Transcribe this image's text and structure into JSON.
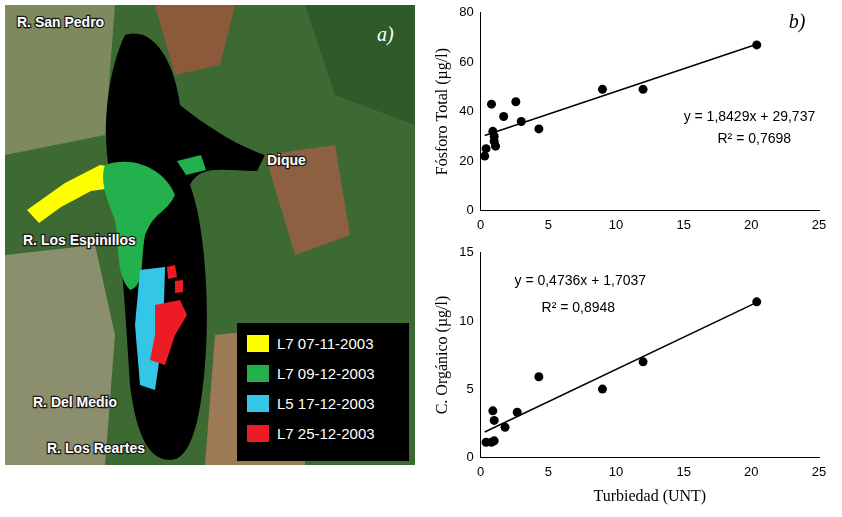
{
  "map": {
    "panel": "a)",
    "labels": [
      {
        "text": "R. San Pedro"
      },
      {
        "text": "R. Los Espinillos"
      },
      {
        "text": "Dique"
      },
      {
        "text": "R. Del Medio"
      },
      {
        "text": "R. Los Reartes"
      }
    ],
    "legend": [
      {
        "label": "L7 07-11-2003",
        "color": "#ffff00"
      },
      {
        "label": "L7 09-12-2003",
        "color": "#22b14c"
      },
      {
        "label": "L5 17-12-2003",
        "color": "#33c6e6"
      },
      {
        "label": "L7 25-12-2003",
        "color": "#ed1c24"
      }
    ]
  },
  "chart_data": [
    {
      "type": "scatter",
      "y_label": "Fósforo Total (µg/l)",
      "annotations": [
        {
          "text": "b)"
        },
        {
          "text": "y = 1,8429x + 29,737"
        },
        {
          "text": "R² = 0,7698"
        }
      ],
      "xlim": [
        0,
        25
      ],
      "xticks": [
        0,
        5,
        10,
        15,
        20,
        25
      ],
      "ylim": [
        0,
        80
      ],
      "yticks": [
        0,
        20,
        40,
        60,
        80
      ],
      "grid": false,
      "series": [
        {
          "type": "scatter",
          "color": "#000000",
          "marker": "circle",
          "x": [
            0.3,
            0.4,
            0.8,
            0.9,
            1.0,
            1.0,
            1.1,
            1.7,
            2.6,
            3.0,
            4.3,
            9.0,
            12.0,
            20.4
          ],
          "values": [
            22,
            25,
            43,
            32,
            30,
            28,
            26,
            38,
            44,
            36,
            33,
            49,
            49,
            67
          ]
        },
        {
          "type": "line",
          "color": "#000000",
          "marker": "none",
          "x": [
            0.3,
            20.4
          ],
          "values": [
            30.3,
            67.3
          ]
        }
      ]
    },
    {
      "type": "scatter",
      "x_label": "Turbiedad (UNT)",
      "y_label": "C. Orgánico (µg/l)",
      "annotations": [
        {
          "text": "y = 0,4736x + 1,7037"
        },
        {
          "text": "R² = 0,8948"
        }
      ],
      "xlim": [
        0,
        25
      ],
      "xticks": [
        0,
        5,
        10,
        15,
        20,
        25
      ],
      "ylim": [
        0,
        15
      ],
      "yticks": [
        0,
        5,
        10,
        15
      ],
      "grid": false,
      "series": [
        {
          "type": "scatter",
          "color": "#000000",
          "marker": "circle",
          "x": [
            0.4,
            0.8,
            1.0,
            1.0,
            0.9,
            1.8,
            2.7,
            4.3,
            9.0,
            12.0,
            20.4
          ],
          "values": [
            1.1,
            1.1,
            1.2,
            2.7,
            3.4,
            2.2,
            3.3,
            5.9,
            5.0,
            7.0,
            11.4
          ]
        },
        {
          "type": "line",
          "color": "#000000",
          "marker": "none",
          "x": [
            0.3,
            20.4
          ],
          "values": [
            1.85,
            11.36
          ]
        }
      ]
    }
  ]
}
